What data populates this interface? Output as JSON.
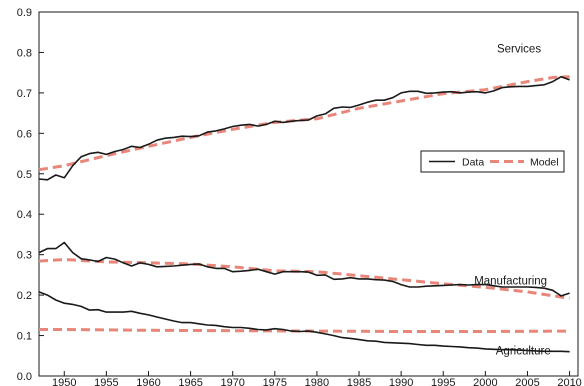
{
  "chart_data": {
    "type": "line",
    "xlim": [
      1947,
      2011
    ],
    "ylim": [
      0,
      0.9
    ],
    "x_ticks": [
      1950,
      1955,
      1960,
      1965,
      1970,
      1975,
      1980,
      1985,
      1990,
      1995,
      2000,
      2005,
      2010
    ],
    "y_ticks": [
      0,
      0.1,
      0.2,
      0.3,
      0.4,
      0.5,
      0.6,
      0.7,
      0.8,
      0.9
    ],
    "y_tick_labels": [
      "0.0",
      "0.1",
      "0.2",
      "0.3",
      "0.4",
      "0.5",
      "0.6",
      "0.7",
      "0.8",
      "0.9"
    ],
    "grid": false,
    "legend": {
      "placement": "right",
      "entries": [
        {
          "label": "Data",
          "style": "solid",
          "color": "#1a1a1a"
        },
        {
          "label": "Model",
          "style": "dashed",
          "color": "#e8867a"
        }
      ]
    },
    "annotations": [
      {
        "text": "Services",
        "x": 2004,
        "y": 0.8
      },
      {
        "text": "Manufacturing",
        "x": 2003,
        "y": 0.226
      },
      {
        "text": "Agriculture",
        "x": 2004.5,
        "y": 0.053
      }
    ],
    "colors": {
      "data": "#1a1a1a",
      "model": "#e8867a"
    },
    "series": [
      {
        "sector": "services",
        "kind": "data",
        "x": [
          1947,
          1948,
          1949,
          1950,
          1951,
          1952,
          1953,
          1954,
          1955,
          1956,
          1957,
          1958,
          1959,
          1960,
          1961,
          1962,
          1963,
          1964,
          1965,
          1966,
          1967,
          1968,
          1969,
          1970,
          1971,
          1972,
          1973,
          1974,
          1975,
          1976,
          1977,
          1978,
          1979,
          1980,
          1981,
          1982,
          1983,
          1984,
          1985,
          1986,
          1987,
          1988,
          1989,
          1990,
          1991,
          1992,
          1993,
          1994,
          1995,
          1996,
          1997,
          1998,
          1999,
          2000,
          2001,
          2002,
          2003,
          2004,
          2005,
          2006,
          2007,
          2008,
          2009,
          2010
        ],
        "y": [
          0.487,
          0.485,
          0.497,
          0.49,
          0.52,
          0.542,
          0.55,
          0.553,
          0.548,
          0.555,
          0.56,
          0.568,
          0.565,
          0.573,
          0.583,
          0.588,
          0.59,
          0.593,
          0.592,
          0.594,
          0.603,
          0.606,
          0.611,
          0.617,
          0.62,
          0.622,
          0.618,
          0.622,
          0.63,
          0.627,
          0.63,
          0.632,
          0.633,
          0.643,
          0.648,
          0.662,
          0.665,
          0.664,
          0.67,
          0.677,
          0.682,
          0.682,
          0.688,
          0.7,
          0.704,
          0.704,
          0.699,
          0.7,
          0.702,
          0.703,
          0.7,
          0.702,
          0.703,
          0.7,
          0.705,
          0.713,
          0.715,
          0.716,
          0.716,
          0.718,
          0.72,
          0.728,
          0.74,
          0.732
        ]
      },
      {
        "sector": "services",
        "kind": "model",
        "x": [
          1947,
          1950,
          1955,
          1960,
          1965,
          1970,
          1975,
          1980,
          1985,
          1990,
          1995,
          2000,
          2005,
          2008,
          2010
        ],
        "y": [
          0.51,
          0.52,
          0.545,
          0.568,
          0.59,
          0.61,
          0.627,
          0.636,
          0.662,
          0.68,
          0.698,
          0.708,
          0.728,
          0.738,
          0.74
        ]
      },
      {
        "sector": "manufacturing",
        "kind": "data",
        "x": [
          1947,
          1948,
          1949,
          1950,
          1951,
          1952,
          1953,
          1954,
          1955,
          1956,
          1957,
          1958,
          1959,
          1960,
          1961,
          1962,
          1963,
          1964,
          1965,
          1966,
          1967,
          1968,
          1969,
          1970,
          1971,
          1972,
          1973,
          1974,
          1975,
          1976,
          1977,
          1978,
          1979,
          1980,
          1981,
          1982,
          1983,
          1984,
          1985,
          1986,
          1987,
          1988,
          1989,
          1990,
          1991,
          1992,
          1993,
          1994,
          1995,
          1996,
          1997,
          1998,
          1999,
          2000,
          2001,
          2002,
          2003,
          2004,
          2005,
          2006,
          2007,
          2008,
          2009,
          2010
        ],
        "y": [
          0.305,
          0.315,
          0.315,
          0.33,
          0.305,
          0.29,
          0.287,
          0.283,
          0.293,
          0.289,
          0.28,
          0.272,
          0.28,
          0.276,
          0.27,
          0.271,
          0.272,
          0.274,
          0.276,
          0.277,
          0.27,
          0.266,
          0.266,
          0.258,
          0.259,
          0.261,
          0.264,
          0.258,
          0.252,
          0.258,
          0.258,
          0.258,
          0.257,
          0.249,
          0.25,
          0.239,
          0.24,
          0.243,
          0.24,
          0.24,
          0.238,
          0.237,
          0.234,
          0.226,
          0.22,
          0.22,
          0.222,
          0.223,
          0.224,
          0.225,
          0.226,
          0.225,
          0.226,
          0.226,
          0.223,
          0.22,
          0.22,
          0.22,
          0.22,
          0.219,
          0.217,
          0.212,
          0.198,
          0.205
        ]
      },
      {
        "sector": "manufacturing",
        "kind": "model",
        "x": [
          1947,
          1950,
          1955,
          1960,
          1965,
          1970,
          1975,
          1980,
          1985,
          1990,
          1995,
          2000,
          2005,
          2010
        ],
        "y": [
          0.284,
          0.288,
          0.282,
          0.28,
          0.277,
          0.27,
          0.26,
          0.258,
          0.248,
          0.238,
          0.228,
          0.219,
          0.208,
          0.192
        ]
      },
      {
        "sector": "agriculture",
        "kind": "data",
        "x": [
          1947,
          1948,
          1949,
          1950,
          1951,
          1952,
          1953,
          1954,
          1955,
          1956,
          1957,
          1958,
          1959,
          1960,
          1961,
          1962,
          1963,
          1964,
          1965,
          1966,
          1967,
          1968,
          1969,
          1970,
          1971,
          1972,
          1973,
          1974,
          1975,
          1976,
          1977,
          1978,
          1979,
          1980,
          1981,
          1982,
          1983,
          1984,
          1985,
          1986,
          1987,
          1988,
          1989,
          1990,
          1991,
          1992,
          1993,
          1994,
          1995,
          1996,
          1997,
          1998,
          1999,
          2000,
          2001,
          2002,
          2003,
          2004,
          2005,
          2006,
          2007,
          2008,
          2009,
          2010
        ],
        "y": [
          0.208,
          0.2,
          0.188,
          0.18,
          0.177,
          0.172,
          0.163,
          0.164,
          0.158,
          0.158,
          0.158,
          0.16,
          0.155,
          0.151,
          0.146,
          0.141,
          0.136,
          0.132,
          0.132,
          0.129,
          0.126,
          0.125,
          0.122,
          0.12,
          0.12,
          0.118,
          0.115,
          0.114,
          0.117,
          0.115,
          0.111,
          0.11,
          0.111,
          0.108,
          0.104,
          0.1,
          0.095,
          0.093,
          0.09,
          0.087,
          0.086,
          0.083,
          0.082,
          0.081,
          0.08,
          0.078,
          0.076,
          0.076,
          0.074,
          0.073,
          0.072,
          0.07,
          0.069,
          0.067,
          0.066,
          0.065,
          0.065,
          0.064,
          0.063,
          0.062,
          0.061,
          0.061,
          0.061,
          0.06
        ]
      },
      {
        "sector": "agriculture",
        "kind": "model",
        "x": [
          1947,
          1950,
          1960,
          1970,
          1980,
          1990,
          2000,
          2010
        ],
        "y": [
          0.115,
          0.115,
          0.113,
          0.112,
          0.111,
          0.11,
          0.11,
          0.111
        ]
      }
    ]
  }
}
